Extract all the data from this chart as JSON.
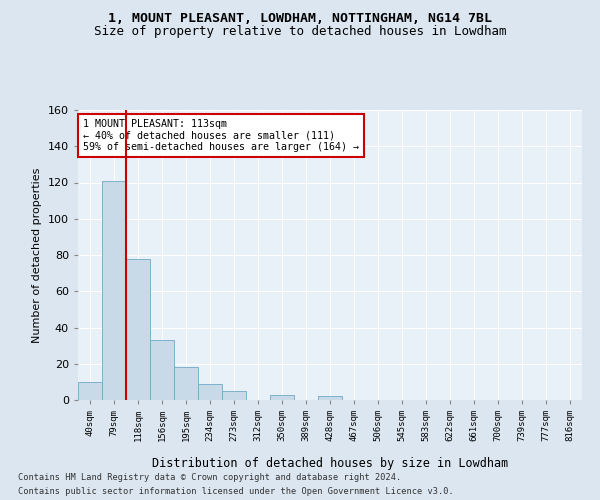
{
  "title1": "1, MOUNT PLEASANT, LOWDHAM, NOTTINGHAM, NG14 7BL",
  "title2": "Size of property relative to detached houses in Lowdham",
  "xlabel": "Distribution of detached houses by size in Lowdham",
  "ylabel": "Number of detached properties",
  "bar_labels": [
    "40sqm",
    "79sqm",
    "118sqm",
    "156sqm",
    "195sqm",
    "234sqm",
    "273sqm",
    "312sqm",
    "350sqm",
    "389sqm",
    "428sqm",
    "467sqm",
    "506sqm",
    "545sqm",
    "583sqm",
    "622sqm",
    "661sqm",
    "700sqm",
    "739sqm",
    "777sqm",
    "816sqm"
  ],
  "bar_values": [
    10,
    121,
    78,
    33,
    18,
    9,
    5,
    0,
    3,
    0,
    2,
    0,
    0,
    0,
    0,
    0,
    0,
    0,
    0,
    0,
    0
  ],
  "bar_color": "#c8d9e8",
  "bar_edge_color": "#6fa8c8",
  "property_label": "1 MOUNT PLEASANT: 113sqm",
  "annotation_line1": "← 40% of detached houses are smaller (111)",
  "annotation_line2": "59% of semi-detached houses are larger (164) →",
  "annotation_box_color": "#ffffff",
  "annotation_border_color": "#cc0000",
  "vline_color": "#cc0000",
  "ylim": [
    0,
    160
  ],
  "yticks": [
    0,
    20,
    40,
    60,
    80,
    100,
    120,
    140,
    160
  ],
  "footer1": "Contains HM Land Registry data © Crown copyright and database right 2024.",
  "footer2": "Contains public sector information licensed under the Open Government Licence v3.0.",
  "bg_color": "#dce6f0",
  "plot_bg_color": "#e8f0f8"
}
